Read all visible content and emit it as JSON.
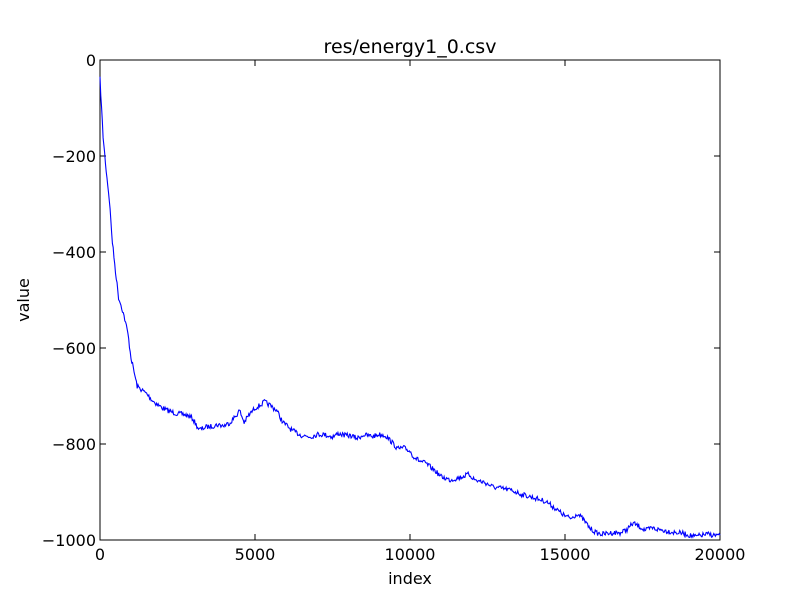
{
  "chart_data": {
    "type": "line",
    "title": "res/energy1_0.csv",
    "xlabel": "index",
    "ylabel": "value",
    "xlim": [
      0,
      20000
    ],
    "ylim": [
      -1000,
      0
    ],
    "xticks": [
      0,
      5000,
      10000,
      15000,
      20000
    ],
    "yticks": [
      0,
      -200,
      -400,
      -600,
      -800,
      -1000
    ],
    "xtick_labels": [
      "0",
      "5000",
      "10000",
      "15000",
      "20000"
    ],
    "ytick_labels": [
      "0",
      "−200",
      "−400",
      "−600",
      "−800",
      "−1000"
    ],
    "grid": false,
    "series": [
      {
        "color": "#0000ff",
        "x": [
          0,
          100,
          200,
          300,
          400,
          500,
          600,
          700,
          800,
          900,
          1000,
          1100,
          1200,
          1300,
          1400,
          1500,
          1700,
          1900,
          2100,
          2300,
          2500,
          2700,
          2900,
          3000,
          3100,
          3200,
          3300,
          3400,
          3600,
          3800,
          4000,
          4200,
          4400,
          4500,
          4650,
          4800,
          5000,
          5200,
          5300,
          5500,
          5700,
          5900,
          6000,
          6200,
          6500,
          6800,
          7000,
          7200,
          7500,
          7700,
          7900,
          8100,
          8300,
          8500,
          8800,
          9000,
          9200,
          9400,
          9600,
          9800,
          10000,
          10100,
          10300,
          10500,
          10800,
          11000,
          11300,
          11600,
          11900,
          12100,
          12400,
          12700,
          13000,
          13300,
          13600,
          14000,
          14400,
          14700,
          15000,
          15200,
          15400,
          15600,
          15800,
          16000,
          16200,
          16500,
          16800,
          17000,
          17200,
          17400,
          17600,
          17800,
          18000,
          18200,
          18500,
          18800,
          19000,
          19200,
          19400,
          19600,
          19800,
          20000
        ],
        "y": [
          -40,
          -160,
          -230,
          -290,
          -380,
          -440,
          -495,
          -515,
          -540,
          -570,
          -620,
          -650,
          -680,
          -685,
          -690,
          -695,
          -710,
          -720,
          -728,
          -733,
          -737,
          -738,
          -743,
          -748,
          -760,
          -770,
          -768,
          -765,
          -763,
          -760,
          -762,
          -755,
          -740,
          -730,
          -755,
          -740,
          -725,
          -718,
          -712,
          -720,
          -730,
          -755,
          -760,
          -772,
          -782,
          -785,
          -780,
          -780,
          -785,
          -778,
          -782,
          -783,
          -788,
          -781,
          -784,
          -780,
          -782,
          -795,
          -810,
          -808,
          -815,
          -825,
          -835,
          -840,
          -855,
          -868,
          -875,
          -870,
          -863,
          -875,
          -880,
          -890,
          -893,
          -897,
          -905,
          -912,
          -920,
          -935,
          -950,
          -955,
          -945,
          -958,
          -975,
          -985,
          -988,
          -985,
          -985,
          -978,
          -965,
          -972,
          -980,
          -975,
          -978,
          -980,
          -984,
          -986,
          -990,
          -993,
          -990,
          -988,
          -990,
          -990
        ]
      }
    ]
  }
}
